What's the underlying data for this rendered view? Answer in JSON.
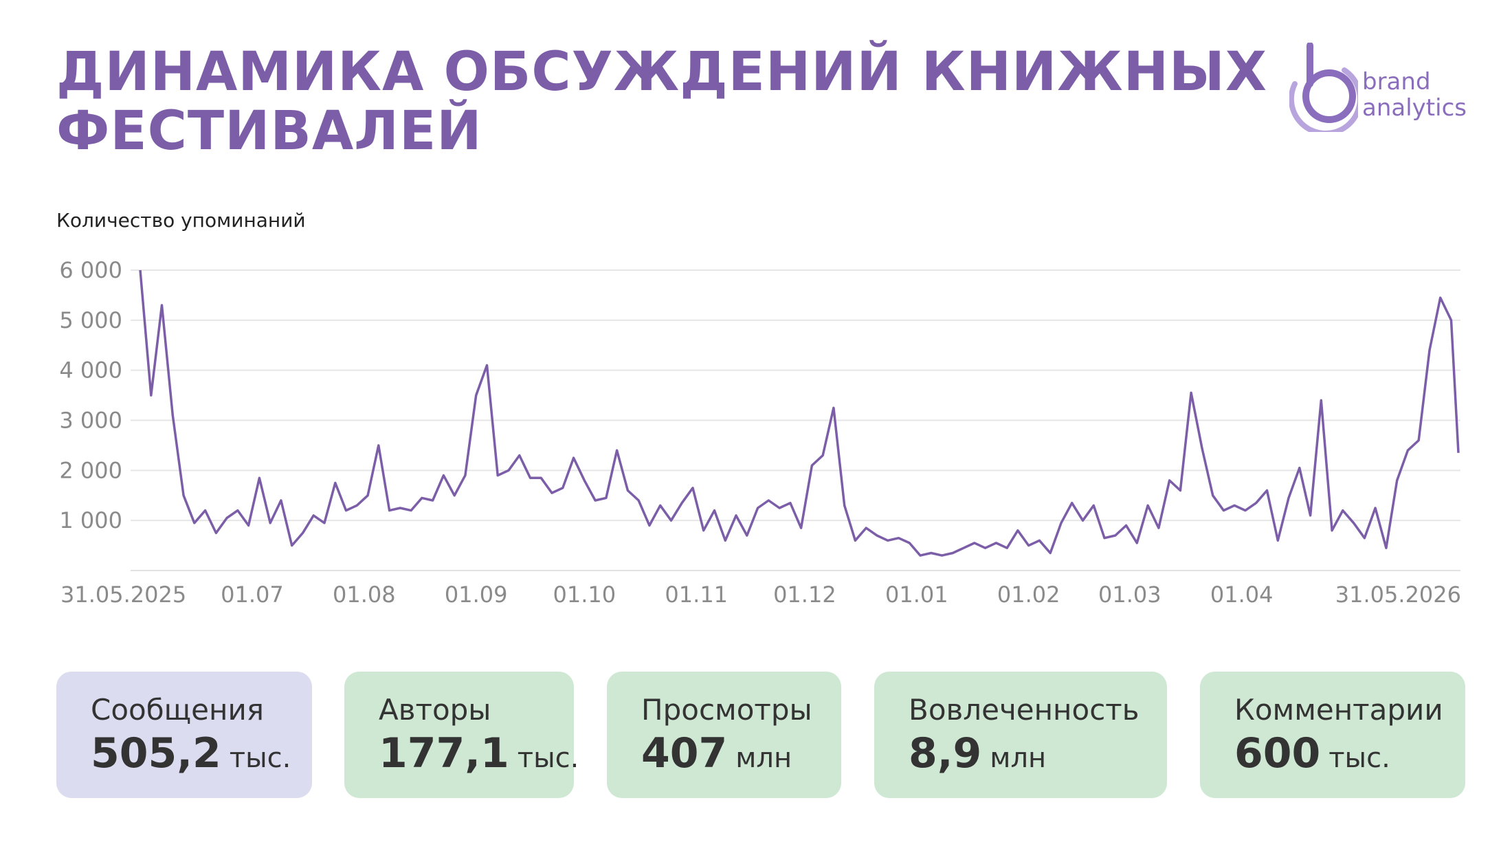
{
  "header": {
    "title_lines": [
      "ДИНАМИКА ОБСУЖДЕНИЙ КНИЖНЫХ",
      "ФЕСТИВАЛЕЙ"
    ],
    "logo": [
      "brand",
      "analytics"
    ]
  },
  "chart_data": {
    "type": "line",
    "y_label": "Количество упоминаний",
    "color": "#7b5ea7",
    "grid": true,
    "xlim": [
      0,
      365
    ],
    "ylim": [
      0,
      6000
    ],
    "xticks": [
      {
        "value": 0,
        "label": "31.05.2025"
      },
      {
        "value": 31,
        "label": "01.07"
      },
      {
        "value": 62,
        "label": "01.08"
      },
      {
        "value": 93,
        "label": "01.09"
      },
      {
        "value": 123,
        "label": "01.10"
      },
      {
        "value": 154,
        "label": "01.11"
      },
      {
        "value": 184,
        "label": "01.12"
      },
      {
        "value": 215,
        "label": "01.01"
      },
      {
        "value": 246,
        "label": "01.02"
      },
      {
        "value": 274,
        "label": "01.03"
      },
      {
        "value": 305,
        "label": "01.04"
      },
      {
        "value": 365,
        "label": "31.05.2026"
      }
    ],
    "yticks": [
      {
        "value": 1000,
        "label": "1 000"
      },
      {
        "value": 2000,
        "label": "2 000"
      },
      {
        "value": 3000,
        "label": "3 000"
      },
      {
        "value": 4000,
        "label": "4 000"
      },
      {
        "value": 5000,
        "label": "5 000"
      },
      {
        "value": 6000,
        "label": "6 000"
      }
    ],
    "x": [
      0,
      3,
      6,
      9,
      12,
      15,
      18,
      21,
      24,
      27,
      30,
      33,
      36,
      39,
      42,
      45,
      48,
      51,
      54,
      57,
      60,
      63,
      66,
      69,
      72,
      75,
      78,
      81,
      84,
      87,
      90,
      93,
      96,
      99,
      102,
      105,
      108,
      111,
      114,
      117,
      120,
      123,
      126,
      129,
      132,
      135,
      138,
      141,
      144,
      147,
      150,
      153,
      156,
      159,
      162,
      165,
      168,
      171,
      174,
      177,
      180,
      183,
      186,
      189,
      192,
      195,
      198,
      201,
      204,
      207,
      210,
      213,
      216,
      219,
      222,
      225,
      228,
      231,
      234,
      237,
      240,
      243,
      246,
      249,
      252,
      255,
      258,
      261,
      264,
      267,
      270,
      273,
      276,
      279,
      282,
      285,
      288,
      291,
      294,
      297,
      300,
      303,
      306,
      309,
      312,
      315,
      318,
      321,
      324,
      327,
      330,
      333,
      336,
      339,
      342,
      345,
      348,
      351,
      354,
      357,
      360,
      363,
      365
    ],
    "values": [
      6000,
      3500,
      5300,
      3100,
      1500,
      950,
      1200,
      750,
      1050,
      1200,
      900,
      1850,
      950,
      1400,
      500,
      750,
      1100,
      950,
      1750,
      1200,
      1300,
      1500,
      2500,
      1200,
      1250,
      1200,
      1450,
      1400,
      1900,
      1500,
      1900,
      3500,
      4100,
      1900,
      2000,
      2300,
      1850,
      1850,
      1550,
      1650,
      2250,
      1800,
      1400,
      1450,
      2400,
      1600,
      1400,
      900,
      1300,
      1000,
      1350,
      1650,
      800,
      1200,
      600,
      1100,
      700,
      1250,
      1400,
      1250,
      1350,
      850,
      2100,
      2300,
      3250,
      1300,
      600,
      850,
      700,
      600,
      650,
      550,
      300,
      350,
      300,
      350,
      450,
      550,
      450,
      550,
      450,
      800,
      500,
      600,
      350,
      950,
      1350,
      1000,
      1300,
      650,
      700,
      900,
      550,
      1300,
      850,
      1800,
      1600,
      3550,
      2450,
      1500,
      1200,
      1300,
      1200,
      1350,
      1600,
      600,
      1450,
      2050,
      1100,
      3400,
      800,
      1200,
      950,
      650,
      1250,
      450,
      1800,
      2400,
      2600,
      4400,
      5450,
      5000,
      2350
    ]
  },
  "kpis": [
    {
      "label": "Сообщения",
      "value": "505,2",
      "unit": "тыс."
    },
    {
      "label": "Авторы",
      "value": "177,1",
      "unit": "тыс."
    },
    {
      "label": "Просмотры",
      "value": "407",
      "unit": "млн"
    },
    {
      "label": "Вовлеченность",
      "value": "8,9",
      "unit": "млн"
    },
    {
      "label": "Комментарии",
      "value": "600",
      "unit": "тыс."
    }
  ]
}
